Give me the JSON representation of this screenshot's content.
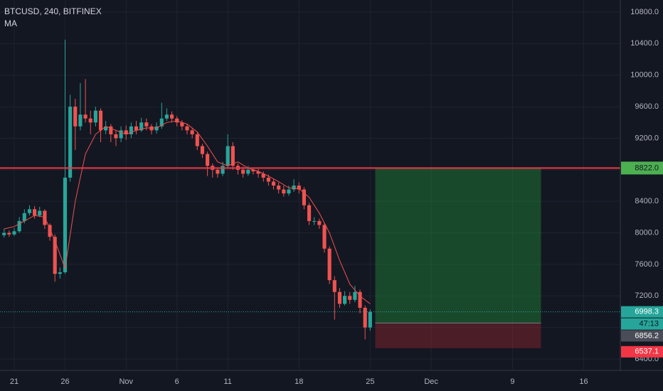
{
  "chart_data": {
    "type": "candlestick",
    "title": "BTCUSD, 240, BITFINEX",
    "indicator": "MA",
    "grid": true,
    "up_color": "#26a69a",
    "down_color": "#ef5350",
    "x": [
      -1,
      -0.5,
      0,
      0.5,
      1,
      1.5,
      2,
      2.5,
      3,
      3.5,
      4,
      4.5,
      5,
      5.5,
      6,
      6.5,
      7,
      7.5,
      8,
      8.5,
      9,
      9.5,
      10,
      10.5,
      11,
      11.5,
      12,
      12.5,
      13,
      13.5,
      14,
      14.5,
      15,
      15.5,
      16,
      16.5,
      17,
      17.5,
      18,
      18.5,
      19,
      19.5,
      20,
      20.5,
      21,
      21.5,
      22,
      22.5,
      23,
      23.5,
      24,
      24.5,
      25,
      25.5,
      26,
      26.5,
      27,
      27.5,
      28,
      28.5,
      29,
      29.5,
      30,
      30.5,
      31,
      31.5,
      32,
      32.5,
      33,
      33.5,
      34,
      34.5,
      35
    ],
    "open": [
      7970,
      8000,
      7980,
      8020,
      8150,
      8250,
      8300,
      8220,
      8280,
      8100,
      7950,
      7480,
      7500,
      8700,
      9600,
      9350,
      9500,
      9450,
      9400,
      9550,
      9300,
      9350,
      9250,
      9200,
      9300,
      9250,
      9350,
      9300,
      9400,
      9350,
      9300,
      9350,
      9450,
      9500,
      9450,
      9400,
      9350,
      9300,
      9250,
      9100,
      9000,
      8850,
      8800,
      8750,
      8850,
      9100,
      8850,
      8800,
      8750,
      8800,
      8780,
      8750,
      8700,
      8650,
      8600,
      8550,
      8500,
      8550,
      8600,
      8550,
      8350,
      8150,
      8150,
      8100,
      7800,
      7400,
      7250,
      7100,
      7200,
      7150,
      7250,
      7050,
      6800
    ],
    "high": [
      8050,
      8030,
      8060,
      8200,
      8300,
      8350,
      8340,
      8330,
      8300,
      8120,
      7980,
      7560,
      10450,
      9750,
      9700,
      9900,
      9950,
      9550,
      9600,
      9580,
      9420,
      9380,
      9300,
      9350,
      9360,
      9400,
      9420,
      9460,
      9450,
      9380,
      9400,
      9650,
      9580,
      9540,
      9480,
      9430,
      9380,
      9330,
      9280,
      9130,
      9030,
      8880,
      8830,
      8900,
      9250,
      9150,
      8880,
      8840,
      8850,
      8830,
      8810,
      8780,
      8740,
      8680,
      8640,
      8600,
      8600,
      8680,
      8640,
      8580,
      8380,
      8200,
      8180,
      8130,
      7830,
      7450,
      7300,
      7260,
      7250,
      7330,
      7280,
      7080,
      7030
    ],
    "low": [
      7940,
      7950,
      7960,
      8000,
      8120,
      8220,
      8180,
      8200,
      8050,
      7900,
      7380,
      7420,
      7480,
      8650,
      9050,
      9300,
      9400,
      9250,
      9350,
      9150,
      9250,
      9150,
      9100,
      9150,
      9180,
      9200,
      9250,
      9280,
      9300,
      9250,
      9260,
      9320,
      9420,
      9400,
      9350,
      9300,
      9250,
      9200,
      9050,
      8950,
      8720,
      8700,
      8700,
      8720,
      8820,
      8800,
      8740,
      8700,
      8720,
      8740,
      8700,
      8650,
      8600,
      8550,
      8500,
      8460,
      8470,
      8520,
      8500,
      8300,
      8100,
      8100,
      8050,
      7750,
      7350,
      6900,
      7050,
      7080,
      7100,
      7120,
      6980,
      6650,
      6760
    ],
    "close": [
      8000,
      7980,
      8020,
      8150,
      8250,
      8300,
      8220,
      8280,
      8100,
      7950,
      7480,
      7500,
      8700,
      9600,
      9350,
      9500,
      9450,
      9400,
      9550,
      9300,
      9350,
      9250,
      9200,
      9300,
      9250,
      9350,
      9300,
      9400,
      9350,
      9300,
      9350,
      9450,
      9500,
      9450,
      9400,
      9350,
      9300,
      9250,
      9100,
      9000,
      8850,
      8800,
      8750,
      8850,
      9100,
      8850,
      8800,
      8750,
      8800,
      8780,
      8750,
      8700,
      8650,
      8600,
      8550,
      8500,
      8550,
      8600,
      8550,
      8350,
      8150,
      8150,
      8100,
      7800,
      7400,
      7250,
      7100,
      7200,
      7150,
      7250,
      7050,
      6800,
      6998.3
    ],
    "ma": {
      "color": "#f0514f",
      "x": [
        -1,
        0,
        1,
        2,
        3,
        4,
        5,
        6,
        7,
        8,
        9,
        10,
        11,
        12,
        13,
        14,
        15,
        16,
        17,
        18,
        19,
        20,
        21,
        22,
        23,
        24,
        25,
        26,
        27,
        28,
        29,
        30,
        31,
        32,
        33,
        34,
        35
      ],
      "values": [
        8050,
        8080,
        8150,
        8220,
        8200,
        7900,
        7550,
        8400,
        9000,
        9250,
        9350,
        9300,
        9250,
        9300,
        9330,
        9330,
        9400,
        9420,
        9380,
        9280,
        9100,
        8900,
        8850,
        8900,
        8820,
        8780,
        8720,
        8650,
        8570,
        8560,
        8450,
        8250,
        8000,
        7650,
        7350,
        7200,
        7100
      ]
    },
    "ylim": [
      6265,
      10953
    ],
    "yticks": [
      {
        "value": 6400,
        "label": "6400.0"
      },
      {
        "value": 6800,
        "label": "6800.0"
      },
      {
        "value": 7200,
        "label": "7200.0"
      },
      {
        "value": 7600,
        "label": "7600.0"
      },
      {
        "value": 8000,
        "label": "8000.0"
      },
      {
        "value": 8400,
        "label": "8400.0"
      },
      {
        "value": 8800,
        "label": "8800.0"
      },
      {
        "value": 9200,
        "label": "9200.0"
      },
      {
        "value": 9600,
        "label": "9600.0"
      },
      {
        "value": 10000,
        "label": "10000.0"
      },
      {
        "value": 10400,
        "label": "10400.0"
      },
      {
        "value": 10800,
        "label": "10800.0"
      }
    ],
    "xlim": [
      -1.4,
      59.6
    ],
    "xticks": [
      {
        "value": 0,
        "label": "21"
      },
      {
        "value": 5,
        "label": "26"
      },
      {
        "value": 11,
        "label": "Nov"
      },
      {
        "value": 16,
        "label": "6"
      },
      {
        "value": 21,
        "label": "11"
      },
      {
        "value": 28,
        "label": "18"
      },
      {
        "value": 35,
        "label": "25"
      },
      {
        "value": 41,
        "label": "Dec"
      },
      {
        "value": 49,
        "label": "9"
      },
      {
        "value": 56,
        "label": "16"
      }
    ],
    "hline": {
      "value": 8822,
      "label": "8822.0",
      "color": "#f23645"
    },
    "last_price": {
      "value": 6998.3,
      "label": "6998.3",
      "countdown": "47:13",
      "color": "#26a69a"
    },
    "position": {
      "start": 35.5,
      "end": 51.8,
      "entry": {
        "value": 6856.2,
        "label": "6856.2"
      },
      "stop": {
        "value": 6537.1,
        "label": "6537.1"
      }
    }
  }
}
